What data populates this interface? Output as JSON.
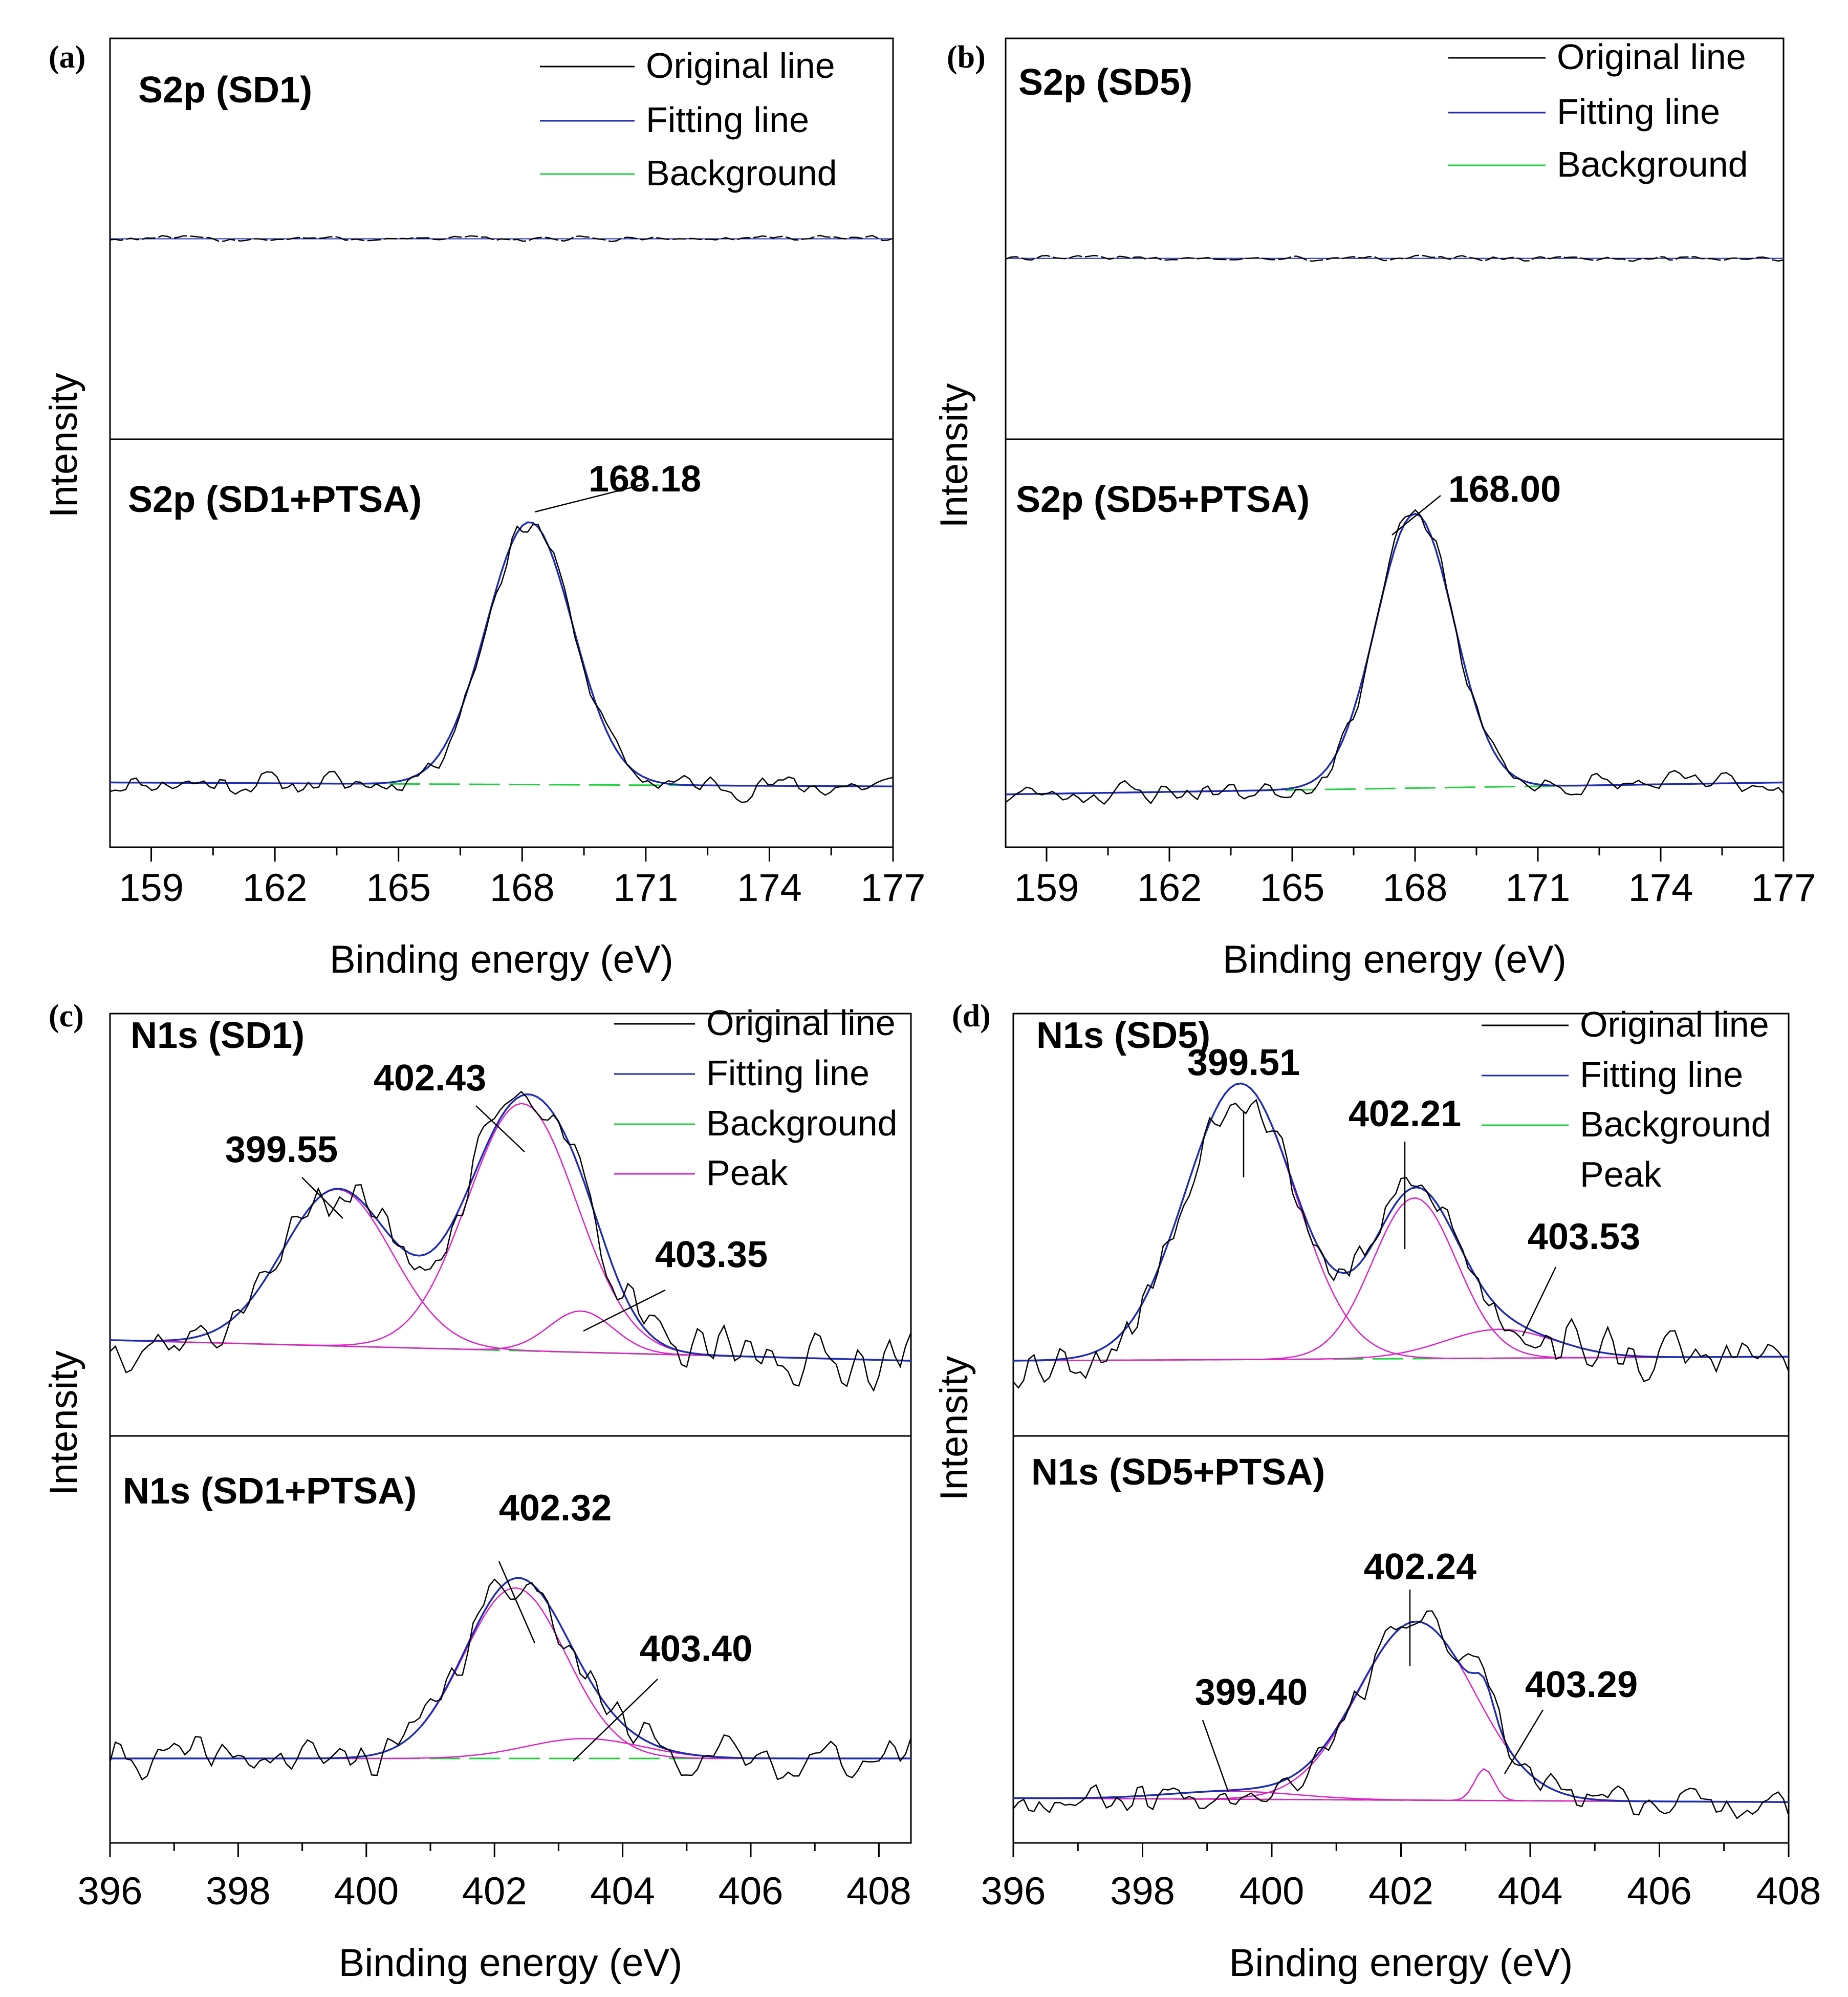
{
  "colors": {
    "original": "#000000",
    "fitting": "#1f2bb0",
    "background": "#1ed23c",
    "peak": "#e020c8",
    "frame": "#000000"
  },
  "chart_data": [
    {
      "id": "a",
      "type": "line",
      "panel_label": "(a)",
      "xlabel": "Binding energy (eV)",
      "ylabel": "Intensity",
      "xlim": [
        158,
        177
      ],
      "xticks": [
        "159",
        "162",
        "165",
        "168",
        "171",
        "174",
        "177"
      ],
      "xtick_values": [
        159,
        162,
        165,
        168,
        171,
        174,
        177
      ],
      "legend": [
        "Original line",
        "Fitting line",
        "Background"
      ],
      "top": {
        "title": "S2p (SD1)",
        "flat_level": 0.5
      },
      "bottom": {
        "title": "S2p (SD1+PTSA)",
        "baseline": [
          0.15,
          0.14
        ],
        "background": [
          0.15,
          0.14
        ],
        "peaks": [
          {
            "center": 168.18,
            "height": 0.66,
            "sigma": 1.05
          }
        ],
        "annotations": [
          {
            "text": "168.18",
            "x": 168.18
          }
        ],
        "noise": 0.025,
        "seed": 11
      }
    },
    {
      "id": "b",
      "type": "line",
      "panel_label": "(b)",
      "xlabel": "Binding energy (eV)",
      "ylabel": "Intensity",
      "xlim": [
        158,
        177
      ],
      "xticks": [
        "159",
        "162",
        "165",
        "168",
        "171",
        "174",
        "177"
      ],
      "xtick_values": [
        159,
        162,
        165,
        168,
        171,
        174,
        177
      ],
      "legend": [
        "Original line",
        "Fitting line",
        "Background"
      ],
      "top": {
        "title": "S2p (SD5)",
        "flat_level": 0.45
      },
      "bottom": {
        "title": "S2p (SD5+PTSA)",
        "baseline": [
          0.12,
          0.15
        ],
        "background": [
          0.12,
          0.15
        ],
        "peaks": [
          {
            "center": 168.0,
            "height": 0.69,
            "sigma": 0.95
          }
        ],
        "annotations": [
          {
            "text": "168.00",
            "x": 168.0
          }
        ],
        "noise": 0.025,
        "seed": 23
      }
    },
    {
      "id": "c",
      "type": "line",
      "panel_label": "(c)",
      "xlabel": "Binding energy (eV)",
      "ylabel": "Intensity",
      "xlim": [
        396,
        408.5
      ],
      "xticks": [
        "396",
        "398",
        "400",
        "402",
        "404",
        "406",
        "408"
      ],
      "xtick_values": [
        396,
        398,
        400,
        402,
        404,
        406,
        408
      ],
      "legend": [
        "Original line",
        "Fitting line",
        "Background",
        "Peak"
      ],
      "top": {
        "title": "N1s (SD1)",
        "baseline": [
          0.22,
          0.17
        ],
        "background": [
          0.22,
          0.17
        ],
        "peaks": [
          {
            "center": 399.55,
            "height": 0.38,
            "sigma": 0.85
          },
          {
            "center": 402.43,
            "height": 0.6,
            "sigma": 0.85
          },
          {
            "center": 403.35,
            "height": 0.1,
            "sigma": 0.5
          }
        ],
        "annotations": [
          {
            "text": "399.55",
            "x": 399.55
          },
          {
            "text": "402.43",
            "x": 402.43
          },
          {
            "text": "403.35",
            "x": 403.35
          }
        ],
        "noise": 0.05,
        "seed": 37
      },
      "bottom": {
        "title": "N1s (SD1+PTSA)",
        "baseline": [
          0.2,
          0.2
        ],
        "background": [
          0.2,
          0.2
        ],
        "peaks": [
          {
            "center": 402.32,
            "height": 0.43,
            "sigma": 0.8
          },
          {
            "center": 403.4,
            "height": 0.05,
            "sigma": 0.9
          }
        ],
        "annotations": [
          {
            "text": "402.32",
            "x": 402.32
          },
          {
            "text": "403.40",
            "x": 403.4
          }
        ],
        "noise": 0.04,
        "seed": 41
      }
    },
    {
      "id": "d",
      "type": "line",
      "panel_label": "(d)",
      "xlabel": "Binding energy (eV)",
      "ylabel": "Intensity",
      "xlim": [
        396,
        408
      ],
      "xticks": [
        "396",
        "398",
        "400",
        "402",
        "404",
        "406",
        "408"
      ],
      "xtick_values": [
        396,
        398,
        400,
        402,
        404,
        406,
        408
      ],
      "legend": [
        "Original line",
        "Fitting line",
        "Background",
        "Peak"
      ],
      "top": {
        "title": "N1s (SD5)",
        "baseline": [
          0.17,
          0.18
        ],
        "background": [
          0.17,
          0.18
        ],
        "peaks": [
          {
            "center": 399.51,
            "height": 0.67,
            "sigma": 0.85
          },
          {
            "center": 402.21,
            "height": 0.39,
            "sigma": 0.65
          },
          {
            "center": 403.53,
            "height": 0.07,
            "sigma": 0.85
          }
        ],
        "annotations": [
          {
            "text": "399.51",
            "x": 399.51
          },
          {
            "text": "402.21",
            "x": 402.21
          },
          {
            "text": "403.53",
            "x": 403.53
          }
        ],
        "noise": 0.05,
        "seed": 53
      },
      "bottom": {
        "title": "N1s (SD5+PTSA)",
        "baseline": [
          0.1,
          0.09
        ],
        "background": [
          0.1,
          0.09
        ],
        "peaks": [
          {
            "center": 399.4,
            "height": 0.02,
            "sigma": 1.0
          },
          {
            "center": 402.24,
            "height": 0.45,
            "sigma": 0.9
          },
          {
            "center": 403.29,
            "height": 0.08,
            "sigma": 0.15
          }
        ],
        "annotations": [
          {
            "text": "399.40",
            "x": 399.4
          },
          {
            "text": "402.24",
            "x": 402.24
          },
          {
            "text": "403.29",
            "x": 403.29
          }
        ],
        "noise": 0.035,
        "seed": 67
      }
    }
  ]
}
